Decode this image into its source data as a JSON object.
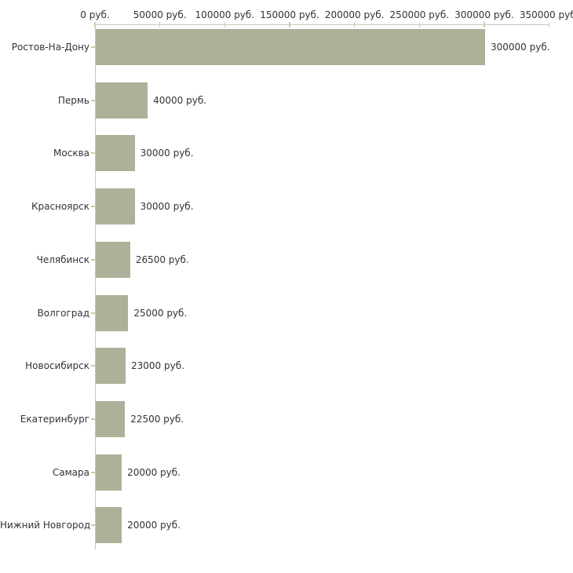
{
  "chart_data": {
    "type": "bar",
    "orientation": "horizontal",
    "title": "",
    "xlabel": "",
    "ylabel": "",
    "unit_suffix": " руб.",
    "categories": [
      "Ростов-На-Дону",
      "Пермь",
      "Москва",
      "Красноярск",
      "Челябинск",
      "Волгоград",
      "Новосибирск",
      "Екатеринбург",
      "Самара",
      "Нижний Новгород"
    ],
    "values": [
      300000,
      40000,
      30000,
      30000,
      26500,
      25000,
      23000,
      22500,
      20000,
      20000
    ],
    "value_labels": [
      "300000 руб.",
      "40000 руб.",
      "30000 руб.",
      "30000 руб.",
      "26500 руб.",
      "25000 руб.",
      "23000 руб.",
      "22500 руб.",
      "20000 руб.",
      "20000 руб."
    ],
    "x_axis": {
      "position": "top",
      "tick_values": [
        0,
        50000,
        100000,
        150000,
        200000,
        250000,
        300000,
        350000
      ],
      "tick_labels": [
        "0 руб.",
        "50000 руб.",
        "100000 руб.",
        "150000 руб.",
        "200000 руб.",
        "250000 руб.",
        "300000 руб.",
        "350000 руб."
      ]
    },
    "xlim": [
      0,
      350000
    ],
    "grid": false,
    "legend": false,
    "colors": {
      "bar": "#acb199",
      "axis_line": "#c6c6c3",
      "tick_mark": "#d0cca0",
      "text": "#333333",
      "background": "#ffffff"
    }
  }
}
